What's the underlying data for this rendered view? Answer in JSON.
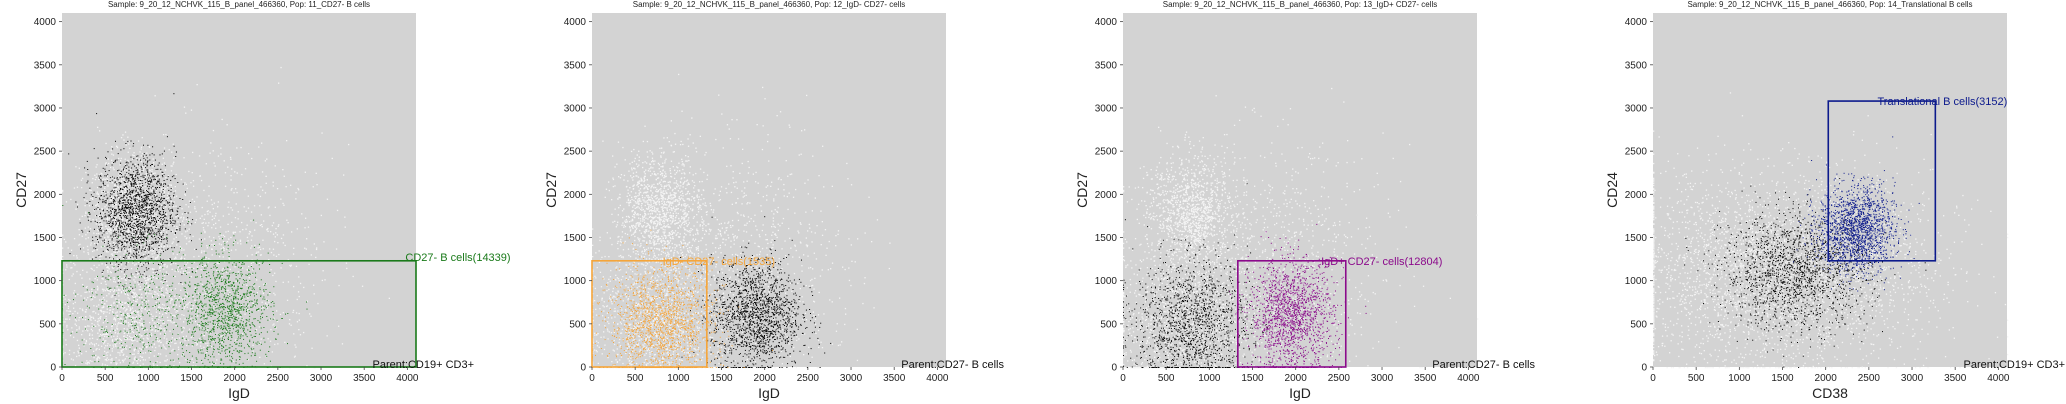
{
  "chart_data": [
    {
      "type": "scatter",
      "title": "Sample: 9_20_12_NCHVK_115_B_panel_466360, Pop: 11_CD27- B cells",
      "xlabel": "IgD",
      "ylabel": "CD27",
      "xlim": [
        0,
        4100
      ],
      "ylim": [
        0,
        4100
      ],
      "xticks": [
        "0",
        "500",
        "1000",
        "1500",
        "2000",
        "2500",
        "3000",
        "3500",
        "4000"
      ],
      "yticks": [
        "0",
        "500",
        "1000",
        "1500",
        "2000",
        "2500",
        "3000",
        "3500",
        "4000"
      ],
      "parent_label": "Parent:CD19+ CD3+",
      "gate": {
        "label": "CD27- B cells(14339)",
        "color": "#1a7a1a",
        "x": [
          0,
          4100
        ],
        "y": [
          0,
          1230
        ]
      },
      "background_color": "#d3d3d3",
      "highlight_color": "#1a7a1a",
      "clusters": [
        {
          "cx": 1900,
          "cy": 650,
          "sx": 260,
          "sy": 320,
          "role": "highlight",
          "weight": 0.75
        },
        {
          "cx": 900,
          "cy": 600,
          "sx": 380,
          "sy": 400,
          "role": "highlight",
          "weight": 0.25
        },
        {
          "cx": 850,
          "cy": 1800,
          "sx": 230,
          "sy": 320,
          "role": "other",
          "weight": 1
        }
      ]
    },
    {
      "type": "scatter",
      "title": "Sample: 9_20_12_NCHVK_115_B_panel_466360, Pop: 12_IgD- CD27- cells",
      "xlabel": "IgD",
      "ylabel": "CD27",
      "xlim": [
        0,
        4100
      ],
      "ylim": [
        0,
        4100
      ],
      "xticks": [
        "0",
        "500",
        "1000",
        "1500",
        "2000",
        "2500",
        "3000",
        "3500",
        "4000"
      ],
      "yticks": [
        "0",
        "500",
        "1000",
        "1500",
        "2000",
        "2500",
        "3000",
        "3500",
        "4000"
      ],
      "parent_label": "Parent:CD27- B cells",
      "gate": {
        "label": "IgD- CD27- cells(1535)",
        "color": "#f5a53a",
        "x": [
          0,
          1330
        ],
        "y": [
          0,
          1230
        ]
      },
      "background_color": "#d3d3d3",
      "highlight_color": "#f5a53a",
      "clusters": [
        {
          "cx": 1900,
          "cy": 600,
          "sx": 260,
          "sy": 320,
          "role": "other",
          "weight": 1
        },
        {
          "cx": 800,
          "cy": 500,
          "sx": 300,
          "sy": 330,
          "role": "highlight",
          "weight": 1
        }
      ]
    },
    {
      "type": "scatter",
      "title": "Sample: 9_20_12_NCHVK_115_B_panel_466360, Pop: 13_IgD+ CD27- cells",
      "xlabel": "IgD",
      "ylabel": "CD27",
      "xlim": [
        0,
        4100
      ],
      "ylim": [
        0,
        4100
      ],
      "xticks": [
        "0",
        "500",
        "1000",
        "1500",
        "2000",
        "2500",
        "3000",
        "3500",
        "4000"
      ],
      "yticks": [
        "0",
        "500",
        "1000",
        "1500",
        "2000",
        "2500",
        "3000",
        "3500",
        "4000"
      ],
      "parent_label": "Parent:CD27- B cells",
      "gate": {
        "label": "IgD+ CD27- cells(12804)",
        "color": "#8b0a8b",
        "x": [
          1330,
          2580
        ],
        "y": [
          0,
          1230
        ]
      },
      "background_color": "#d3d3d3",
      "highlight_color": "#8b0a8b",
      "clusters": [
        {
          "cx": 1950,
          "cy": 600,
          "sx": 240,
          "sy": 320,
          "role": "highlight",
          "weight": 1
        },
        {
          "cx": 800,
          "cy": 500,
          "sx": 330,
          "sy": 380,
          "role": "other",
          "weight": 0.9
        }
      ]
    },
    {
      "type": "scatter",
      "title": "Sample: 9_20_12_NCHVK_115_B_panel_466360, Pop: 14_Translational B cells",
      "xlabel": "CD38",
      "ylabel": "CD24",
      "xlim": [
        0,
        4100
      ],
      "ylim": [
        0,
        4100
      ],
      "xticks": [
        "0",
        "500",
        "1000",
        "1500",
        "2000",
        "2500",
        "3000",
        "3500",
        "4000"
      ],
      "yticks": [
        "0",
        "500",
        "1000",
        "1500",
        "2000",
        "2500",
        "3000",
        "3500",
        "4000"
      ],
      "parent_label": "Parent:CD19+ CD3+",
      "gate": {
        "label": "Translational B cells(3152)",
        "color": "#0c1a8c",
        "x": [
          2030,
          3270
        ],
        "y": [
          1230,
          3080
        ]
      },
      "background_color": "#d3d3d3",
      "highlight_color": "#0c1a8c",
      "clusters": [
        {
          "cx": 1650,
          "cy": 1100,
          "sx": 420,
          "sy": 330,
          "role": "other",
          "weight": 1
        },
        {
          "cx": 2350,
          "cy": 1600,
          "sx": 220,
          "sy": 250,
          "role": "highlight",
          "weight": 1
        }
      ]
    }
  ]
}
